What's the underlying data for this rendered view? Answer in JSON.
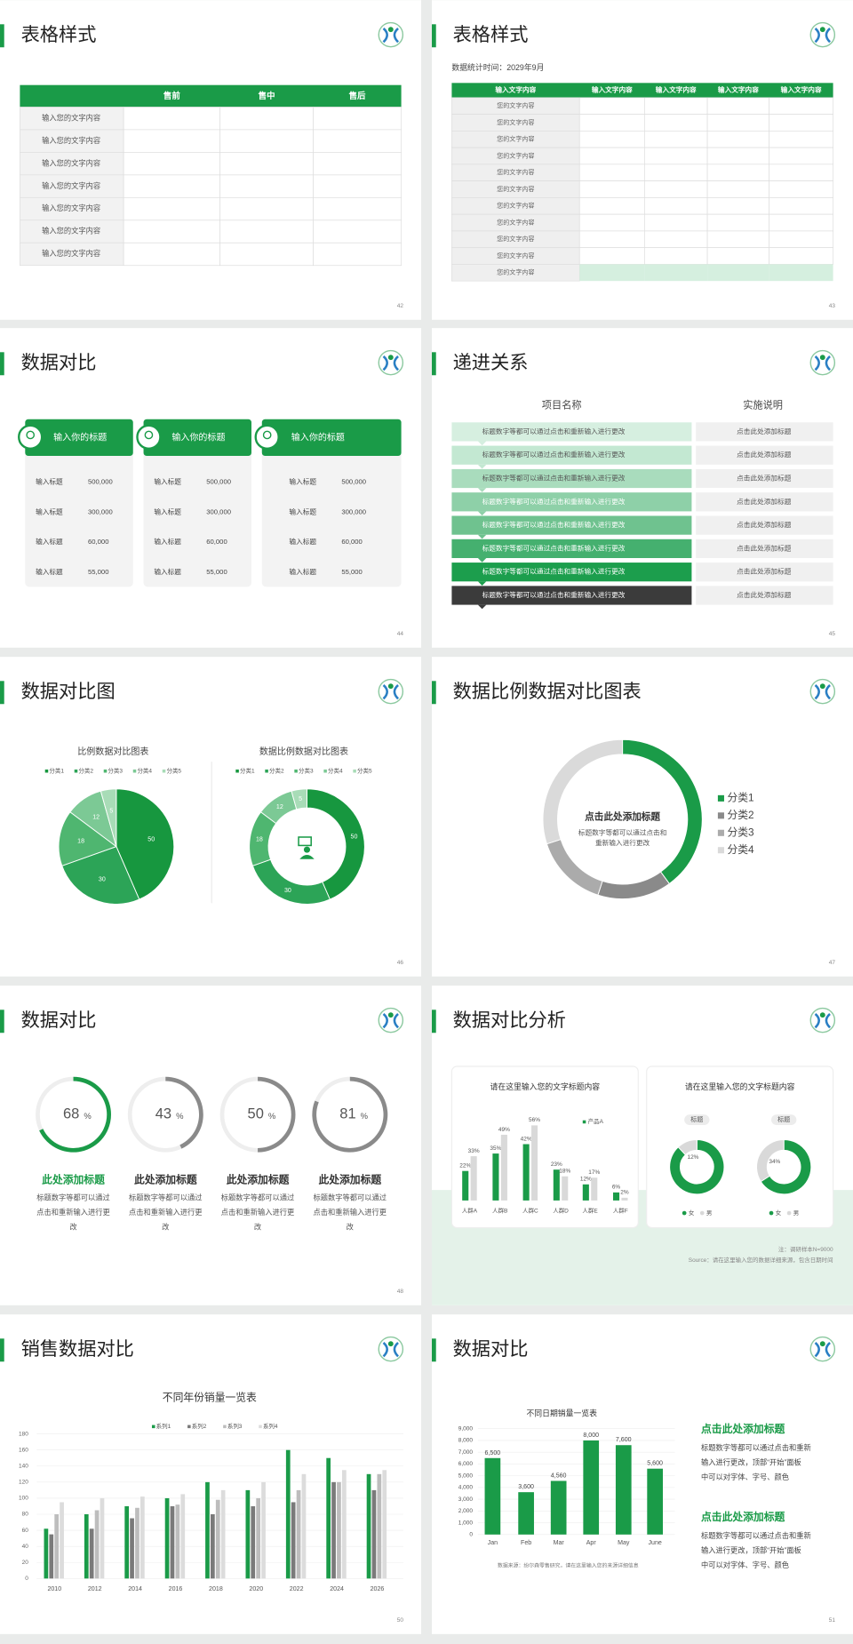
{
  "slides": [
    {
      "title": "表格样式",
      "page": "42",
      "table": {
        "columns": [
          "售前",
          "售中",
          "售后"
        ],
        "rows": [
          "输入您的文字内容",
          "输入您的文字内容",
          "输入您的文字内容",
          "输入您的文字内容",
          "输入您的文字内容",
          "输入您的文字内容",
          "输入您的文字内容"
        ]
      }
    },
    {
      "title": "表格样式",
      "page": "43",
      "subtitle": "数据统计时间：2029年9月",
      "table": {
        "columns": [
          "输入文字内容",
          "输入文字内容",
          "输入文字内容",
          "输入文字内容",
          "输入文字内容"
        ],
        "rows": [
          "您的文字内容",
          "您的文字内容",
          "您的文字内容",
          "您的文字内容",
          "您的文字内容",
          "您的文字内容",
          "您的文字内容",
          "您的文字内容",
          "您的文字内容",
          "您的文字内容",
          "您的文字内容"
        ]
      }
    },
    {
      "title": "数据对比",
      "page": "44",
      "cards": [
        {
          "heading": "输入你的标题",
          "rows": [
            {
              "label": "输入标题",
              "value": "500,000"
            },
            {
              "label": "输入标题",
              "value": "300,000"
            },
            {
              "label": "输入标题",
              "value": "60,000"
            },
            {
              "label": "输入标题",
              "value": "55,000"
            }
          ]
        },
        {
          "heading": "输入你的标题",
          "rows": [
            {
              "label": "输入标题",
              "value": "500,000"
            },
            {
              "label": "输入标题",
              "value": "300,000"
            },
            {
              "label": "输入标题",
              "value": "60,000"
            },
            {
              "label": "输入标题",
              "value": "55,000"
            }
          ]
        },
        {
          "heading": "输入你的标题",
          "rows": [
            {
              "label": "输入标题",
              "value": "500,000"
            },
            {
              "label": "输入标题",
              "value": "300,000"
            },
            {
              "label": "输入标题",
              "value": "60,000"
            },
            {
              "label": "输入标题",
              "value": "55,000"
            }
          ]
        }
      ]
    },
    {
      "title": "递进关系",
      "page": "45",
      "columns": [
        "项目名称",
        "实施说明"
      ],
      "steps": [
        "标题数字等都可以通过点击和重新输入进行更改",
        "标题数字等都可以通过点击和重新输入进行更改",
        "标题数字等都可以通过点击和重新输入进行更改",
        "标题数字等都可以通过点击和重新输入进行更改",
        "标题数字等都可以通过点击和重新输入进行更改",
        "标题数字等都可以通过点击和重新输入进行更改",
        "标题数字等都可以通过点击和重新输入进行更改",
        "标题数字等都可以通过点击和重新输入进行更改"
      ],
      "notes": [
        "点击此处添加标题",
        "点击此处添加标题",
        "点击此处添加标题",
        "点击此处添加标题",
        "点击此处添加标题",
        "点击此处添加标题",
        "点击此处添加标题",
        "点击此处添加标题"
      ]
    },
    {
      "title": "数据对比图",
      "page": "46",
      "charts": [
        {
          "type": "pie",
          "title": "比例数据对比图表",
          "categories": [
            "分类1",
            "分类2",
            "分类3",
            "分类4",
            "分类5"
          ],
          "values": [
            50,
            30,
            18,
            12,
            5
          ],
          "colors": [
            "#17973f",
            "#2ca457",
            "#4fb670",
            "#7cc995",
            "#a8dcb7"
          ]
        },
        {
          "type": "donut",
          "title": "数据比例数据对比图表",
          "categories": [
            "分类1",
            "分类2",
            "分类3",
            "分类4",
            "分类5"
          ],
          "values": [
            50,
            30,
            18,
            12,
            5
          ],
          "colors": [
            "#17973f",
            "#2ca457",
            "#4fb670",
            "#7cc995",
            "#a8dcb7"
          ]
        }
      ]
    },
    {
      "title": "数据比例数据对比图表",
      "page": "47",
      "chart": {
        "type": "donut",
        "title": "点击此处添加标题",
        "subtitle": "标题数字等都可以通过点击和重新输入进行更改",
        "categories": [
          "分类1",
          "分类2",
          "分类3",
          "分类4"
        ],
        "values": [
          40,
          15,
          15,
          30
        ],
        "colors": [
          "#1a9b48",
          "#8a8a8a",
          "#ababab",
          "#dadada"
        ],
        "legend": "right"
      }
    },
    {
      "title": "数据对比",
      "page": "48",
      "gauges": [
        {
          "value": 68,
          "unit": "%",
          "heading": "此处添加标题",
          "text": "标题数字等都可以通过点击和重新输入进行更改",
          "color": "#1a9b48"
        },
        {
          "value": 43,
          "unit": "%",
          "heading": "此处添加标题",
          "text": "标题数字等都可以通过点击和重新输入进行更改",
          "color": "#8a8a8a"
        },
        {
          "value": 50,
          "unit": "%",
          "heading": "此处添加标题",
          "text": "标题数字等都可以通过点击和重新输入进行更改",
          "color": "#8a8a8a"
        },
        {
          "value": 81,
          "unit": "%",
          "heading": "此处添加标题",
          "text": "标题数字等都可以通过点击和重新输入进行更改",
          "color": "#8a8a8a"
        }
      ]
    },
    {
      "title": "数据对比分析",
      "page": "49",
      "bar_chart": {
        "type": "bar",
        "title": "请在这里输入您的文字标题内容",
        "categories": [
          "人群A",
          "人群B",
          "人群C",
          "人群D",
          "人群E",
          "人群F"
        ],
        "series": [
          {
            "name": "产品A",
            "color": "#1a9b48",
            "values": [
              22,
              35,
              42,
              23,
              12,
              6
            ],
            "value_labels": [
              "22%",
              "35%",
              "42%",
              "23%",
              "12%",
              "6%"
            ]
          },
          {
            "color": "#d9d9d9",
            "values": [
              33,
              49,
              56,
              18,
              17,
              2
            ],
            "value_labels": [
              "33%",
              "49%",
              "56%",
              "18%",
              "17%",
              "2%"
            ]
          }
        ]
      },
      "donut_chart": {
        "type": "donut",
        "title": "请在这里输入您的文字标题内容",
        "categories": [
          "女",
          "男"
        ],
        "colors": [
          "#1a9b48",
          "#d9d9d9"
        ],
        "charts": [
          {
            "label": "标题",
            "values": [
              88,
              12
            ],
            "value_labels": [
              null,
              "12%"
            ]
          },
          {
            "label": "标题",
            "values": [
              66,
              34
            ],
            "value_labels": [
              null,
              "34%"
            ]
          }
        ]
      },
      "note": "注：调研样本N=9000",
      "source": "Source：请在这里输入您的数据详细来源，包含日期时间"
    },
    {
      "title": "销售数据对比",
      "page": "50",
      "chart": {
        "type": "bar",
        "title": "不同年份销量一览表",
        "categories": [
          "2010",
          "2012",
          "2014",
          "2016",
          "2018",
          "2020",
          "2022",
          "2024",
          "2026"
        ],
        "series": [
          {
            "name": "系列1",
            "color": "#1a9b48",
            "values": [
              62,
              80,
              90,
              100,
              120,
              110,
              160,
              150,
              130
            ]
          },
          {
            "name": "系列2",
            "color": "#7a7a7a",
            "values": [
              55,
              62,
              75,
              90,
              80,
              90,
              95,
              120,
              110
            ]
          },
          {
            "name": "系列3",
            "color": "#bdbdbd",
            "values": [
              80,
              85,
              88,
              92,
              98,
              100,
              110,
              120,
              130
            ]
          },
          {
            "name": "系列4",
            "color": "#dcdcdc",
            "values": [
              95,
              100,
              102,
              105,
              110,
              120,
              130,
              135,
              135
            ]
          }
        ],
        "ylim": [
          0,
          180
        ],
        "yticks": [
          0,
          20,
          40,
          60,
          80,
          100,
          120,
          140,
          160,
          180
        ],
        "grid": true
      }
    },
    {
      "title": "数据对比",
      "page": "51",
      "chart": {
        "type": "bar",
        "title": "不同日期销量一览表",
        "categories": [
          "Jan",
          "Feb",
          "Mar",
          "Apr",
          "May",
          "June"
        ],
        "values": [
          6500,
          3600,
          4560,
          8000,
          7600,
          5600
        ],
        "value_labels": [
          "6,500",
          "3,600",
          "4,560",
          "8,000",
          "7,600",
          "5,600"
        ],
        "color": "#1a9b48",
        "ylim": [
          0,
          9000
        ],
        "yticks": [
          0,
          {
            "value": 1000,
            "label": "1,000"
          },
          {
            "value": 2000,
            "label": "2,000"
          },
          {
            "value": 3000,
            "label": "3,000"
          },
          {
            "value": 4000,
            "label": "4,000"
          },
          {
            "value": 5000,
            "label": "5,000"
          },
          {
            "value": 6000,
            "label": "6,000"
          },
          {
            "value": 7000,
            "label": "7,000"
          },
          {
            "value": 8000,
            "label": "8,000"
          },
          {
            "value": 9000,
            "label": "9,000"
          }
        ],
        "grid": true
      },
      "source": "数据来源：纷尔森零售研究，请在这里输入您的来源详细信息",
      "points": [
        {
          "heading": "点击此处添加标题",
          "text": "标题数字等都可以通过点击和重新输入进行更改，顶部“开始”面板中可以对字体、字号、颜色"
        },
        {
          "heading": "点击此处添加标题",
          "text": "标题数字等都可以通过点击和重新输入进行更改，顶部“开始”面板中可以对字体、字号、颜色"
        }
      ]
    }
  ]
}
